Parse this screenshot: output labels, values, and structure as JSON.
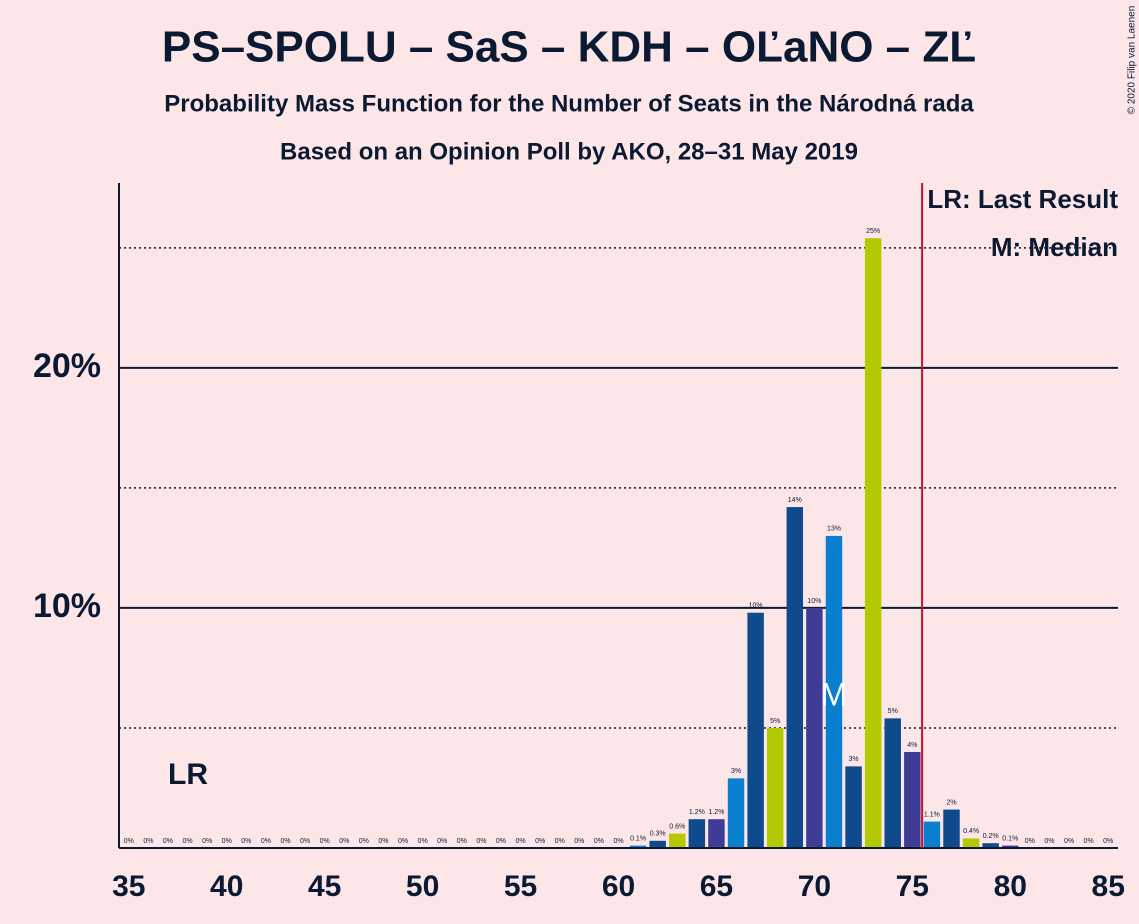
{
  "chart_data": {
    "type": "bar",
    "title": "PS–SPOLU – SaS – KDH – OĽaNO – ZĽ",
    "subtitle": "Probability Mass Function for the Number of Seats in the Národná rada",
    "subtitle2": "Based on an Opinion Poll by AKO, 28–31 May 2019",
    "copyright": "© 2020 Filip van Laenen",
    "legend": [
      "LR: Last Result",
      "M: Median"
    ],
    "lr_label": "LR",
    "median_label": "M",
    "categories": [
      35,
      36,
      37,
      38,
      39,
      40,
      41,
      42,
      43,
      44,
      45,
      46,
      47,
      48,
      49,
      50,
      51,
      52,
      53,
      54,
      55,
      56,
      57,
      58,
      59,
      60,
      61,
      62,
      63,
      64,
      65,
      66,
      67,
      68,
      69,
      70,
      71,
      72,
      73,
      74,
      75,
      76,
      77,
      78,
      79,
      80,
      81,
      82,
      83,
      84,
      85
    ],
    "values": [
      0,
      0,
      0,
      0,
      0,
      0,
      0,
      0,
      0,
      0,
      0,
      0,
      0,
      0,
      0,
      0,
      0,
      0,
      0,
      0,
      0,
      0,
      0,
      0,
      0,
      0,
      0.1,
      0.3,
      0.6,
      1.2,
      1.2,
      2.9,
      9.8,
      5.0,
      14.2,
      10.0,
      13.0,
      3.4,
      25.4,
      5.4,
      4.0,
      1.1,
      1.6,
      0.4,
      0.2,
      0.1,
      0,
      0,
      0,
      0,
      0
    ],
    "value_labels": [
      "0%",
      "0%",
      "0%",
      "0%",
      "0%",
      "0%",
      "0%",
      "0%",
      "0%",
      "0%",
      "0%",
      "0%",
      "0%",
      "0%",
      "0%",
      "0%",
      "0%",
      "0%",
      "0%",
      "0%",
      "0%",
      "0%",
      "0%",
      "0%",
      "0%",
      "0%",
      "0.1%",
      "0.3%",
      "0.6%",
      "1.2%",
      "1.2%",
      "3%",
      "10%",
      "5%",
      "14%",
      "10%",
      "13%",
      "3%",
      "25%",
      "5%",
      "4%",
      "1.1%",
      "2%",
      "0.4%",
      "0.2%",
      "0.1%",
      "0%",
      "0%",
      "0%",
      "0%",
      "0%"
    ],
    "palette": [
      "#3F3C96",
      "#0A7FCF",
      "#0E4A8C",
      "#B4CA00",
      "#0E4A8C"
    ],
    "xlim": [
      34.5,
      85.5
    ],
    "xticks": [
      35,
      40,
      45,
      50,
      55,
      60,
      65,
      70,
      75,
      80,
      85
    ],
    "ylim": [
      0,
      27.7
    ],
    "yticks": [
      {
        "value": 10,
        "label": "10%"
      },
      {
        "value": 20,
        "label": "20%"
      }
    ],
    "minor_yticks": [
      5,
      15,
      25
    ],
    "last_result": 75.5,
    "median": 71,
    "lr_color": "#C8102E"
  }
}
